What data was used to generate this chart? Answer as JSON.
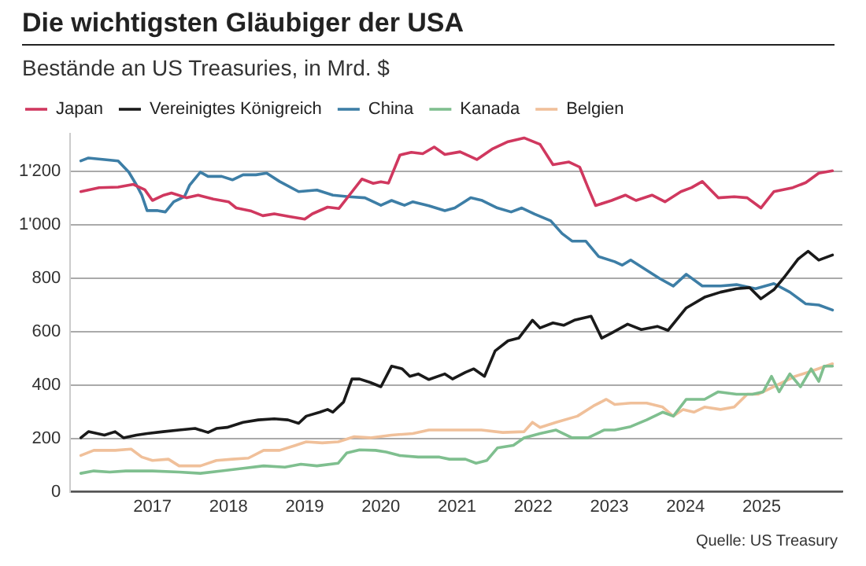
{
  "chart_data": {
    "type": "line",
    "title": "Die wichtigsten Gläubiger der USA",
    "subtitle": "Bestände an US Treasuries, in Mrd. $",
    "annotations": [
      "Quelle: US Treasury"
    ],
    "legend": "top left",
    "grid": "y",
    "xlim": [
      2015.92,
      2026.06
    ],
    "xticks": [
      2017,
      2018,
      2019,
      2020,
      2021,
      2022,
      2023,
      2024,
      2025
    ],
    "ylim": [
      0,
      1340
    ],
    "yticks": [
      0,
      200,
      400,
      600,
      800,
      {
        "value": 1000,
        "label": "1'000"
      },
      {
        "value": 1200,
        "label": "1'200"
      }
    ],
    "series": [
      {
        "name": "Japan",
        "color": "#d0385f",
        "x": [
          2016.06,
          2016.3,
          2016.55,
          2016.75,
          2016.9,
          2017.0,
          2017.15,
          2017.25,
          2017.45,
          2017.6,
          2017.8,
          2018.0,
          2018.1,
          2018.3,
          2018.45,
          2018.6,
          2018.8,
          2019.0,
          2019.1,
          2019.3,
          2019.45,
          2019.6,
          2019.75,
          2019.9,
          2020.0,
          2020.1,
          2020.25,
          2020.4,
          2020.55,
          2020.7,
          2020.84,
          2021.04,
          2021.26,
          2021.46,
          2021.67,
          2021.88,
          2022.09,
          2022.26,
          2022.47,
          2022.61,
          2022.72,
          2022.82,
          2023.03,
          2023.21,
          2023.35,
          2023.56,
          2023.73,
          2023.94,
          2024.08,
          2024.22,
          2024.43,
          2024.64,
          2024.81,
          2024.99,
          2025.16,
          2025.41,
          2025.58,
          2025.75,
          2025.93
        ],
        "values": [
          1123,
          1138,
          1140,
          1150,
          1130,
          1090,
          1110,
          1118,
          1100,
          1110,
          1095,
          1085,
          1062,
          1050,
          1033,
          1040,
          1030,
          1020,
          1040,
          1065,
          1060,
          1115,
          1170,
          1154,
          1160,
          1155,
          1260,
          1270,
          1265,
          1290,
          1262,
          1272,
          1243,
          1282,
          1310,
          1324,
          1300,
          1224,
          1234,
          1215,
          1138,
          1071,
          1090,
          1110,
          1090,
          1110,
          1085,
          1123,
          1138,
          1161,
          1100,
          1104,
          1100,
          1062,
          1123,
          1138,
          1157,
          1192,
          1201
        ]
      },
      {
        "name": "Vereinigtes Königreich",
        "color": "#1a1a1a",
        "x": [
          2016.06,
          2016.16,
          2016.37,
          2016.51,
          2016.62,
          2016.79,
          2016.93,
          2017.14,
          2017.35,
          2017.56,
          2017.73,
          2017.84,
          2017.98,
          2018.19,
          2018.39,
          2018.6,
          2018.78,
          2018.92,
          2019.02,
          2019.2,
          2019.3,
          2019.37,
          2019.51,
          2019.62,
          2019.72,
          2019.86,
          2020.0,
          2020.14,
          2020.28,
          2020.38,
          2020.49,
          2020.63,
          2020.84,
          2020.94,
          2021.11,
          2021.22,
          2021.36,
          2021.5,
          2021.67,
          2021.81,
          2021.99,
          2022.09,
          2022.26,
          2022.4,
          2022.54,
          2022.76,
          2022.9,
          2023.03,
          2023.24,
          2023.42,
          2023.63,
          2023.77,
          2024.01,
          2024.25,
          2024.46,
          2024.67,
          2024.84,
          2024.99,
          2025.16,
          2025.3,
          2025.48,
          2025.61,
          2025.75,
          2025.93
        ],
        "values": [
          202,
          225,
          212,
          225,
          202,
          212,
          218,
          225,
          231,
          237,
          222,
          237,
          241,
          260,
          269,
          273,
          269,
          256,
          283,
          298,
          308,
          298,
          336,
          422,
          422,
          409,
          393,
          470,
          460,
          432,
          441,
          420,
          441,
          422,
          447,
          460,
          432,
          527,
          565,
          575,
          642,
          613,
          632,
          623,
          642,
          657,
          575,
          594,
          627,
          607,
          619,
          604,
          688,
          728,
          747,
          760,
          764,
          722,
          756,
          804,
          871,
          900,
          867,
          886
        ]
      },
      {
        "name": "China",
        "color": "#3d7ea6",
        "x": [
          2016.06,
          2016.16,
          2016.37,
          2016.55,
          2016.69,
          2016.79,
          2016.86,
          2016.93,
          2017.07,
          2017.17,
          2017.28,
          2017.42,
          2017.49,
          2017.63,
          2017.73,
          2017.91,
          2018.05,
          2018.19,
          2018.36,
          2018.5,
          2018.67,
          2018.92,
          2019.16,
          2019.37,
          2019.58,
          2019.79,
          2020.0,
          2020.14,
          2020.31,
          2020.42,
          2020.63,
          2020.84,
          2020.97,
          2021.18,
          2021.32,
          2021.53,
          2021.71,
          2021.85,
          2022.02,
          2022.23,
          2022.38,
          2022.51,
          2022.69,
          2022.86,
          2023.07,
          2023.17,
          2023.28,
          2023.49,
          2023.66,
          2023.84,
          2024.01,
          2024.22,
          2024.46,
          2024.67,
          2024.92,
          2025.16,
          2025.37,
          2025.58,
          2025.75,
          2025.93
        ],
        "values": [
          1238,
          1249,
          1243,
          1238,
          1196,
          1148,
          1110,
          1052,
          1052,
          1047,
          1085,
          1104,
          1148,
          1196,
          1180,
          1180,
          1167,
          1186,
          1186,
          1192,
          1161,
          1123,
          1129,
          1110,
          1104,
          1100,
          1072,
          1090,
          1072,
          1085,
          1070,
          1052,
          1062,
          1100,
          1091,
          1062,
          1047,
          1062,
          1039,
          1014,
          966,
          938,
          938,
          880,
          861,
          848,
          867,
          829,
          798,
          770,
          814,
          770,
          770,
          775,
          760,
          779,
          747,
          703,
          699,
          680
        ]
      },
      {
        "name": "Kanada",
        "color": "#7fbf8f",
        "x": [
          2016.06,
          2016.23,
          2016.44,
          2016.65,
          2017.0,
          2017.35,
          2017.63,
          2017.91,
          2018.19,
          2018.46,
          2018.74,
          2018.95,
          2019.16,
          2019.44,
          2019.55,
          2019.72,
          2019.93,
          2020.07,
          2020.24,
          2020.49,
          2020.77,
          2020.9,
          2021.11,
          2021.25,
          2021.39,
          2021.53,
          2021.74,
          2021.88,
          2022.09,
          2022.3,
          2022.51,
          2022.72,
          2022.93,
          2023.07,
          2023.28,
          2023.49,
          2023.7,
          2023.84,
          2024.01,
          2024.25,
          2024.43,
          2024.67,
          2024.88,
          2025.02,
          2025.13,
          2025.23,
          2025.37,
          2025.51,
          2025.65,
          2025.75,
          2025.82,
          2025.93
        ],
        "values": [
          69,
          78,
          74,
          78,
          78,
          74,
          69,
          78,
          88,
          97,
          92,
          103,
          97,
          107,
          145,
          157,
          155,
          149,
          136,
          130,
          130,
          122,
          122,
          107,
          117,
          164,
          174,
          202,
          218,
          231,
          202,
          202,
          231,
          231,
          244,
          269,
          298,
          283,
          346,
          346,
          374,
          365,
          365,
          374,
          432,
          374,
          441,
          393,
          460,
          413,
          470,
          470
        ]
      },
      {
        "name": "Belgien",
        "color": "#f0c09a",
        "x": [
          2016.06,
          2016.23,
          2016.51,
          2016.72,
          2016.86,
          2017.0,
          2017.21,
          2017.35,
          2017.63,
          2017.84,
          2018.05,
          2018.26,
          2018.46,
          2018.67,
          2018.88,
          2019.02,
          2019.23,
          2019.44,
          2019.65,
          2019.86,
          2020.14,
          2020.42,
          2020.63,
          2020.84,
          2021.04,
          2021.32,
          2021.6,
          2021.88,
          2021.99,
          2022.09,
          2022.3,
          2022.58,
          2022.79,
          2022.96,
          2023.07,
          2023.28,
          2023.49,
          2023.7,
          2023.84,
          2023.97,
          2024.11,
          2024.25,
          2024.46,
          2024.64,
          2024.81,
          2024.95,
          2025.16,
          2025.44,
          2025.65,
          2025.93
        ],
        "values": [
          136,
          155,
          155,
          160,
          130,
          117,
          122,
          97,
          97,
          117,
          122,
          126,
          155,
          155,
          174,
          187,
          183,
          187,
          206,
          202,
          212,
          218,
          231,
          231,
          231,
          231,
          222,
          225,
          260,
          241,
          260,
          283,
          321,
          346,
          327,
          332,
          332,
          317,
          283,
          308,
          298,
          317,
          308,
          317,
          365,
          365,
          393,
          432,
          451,
          479
        ]
      }
    ]
  }
}
